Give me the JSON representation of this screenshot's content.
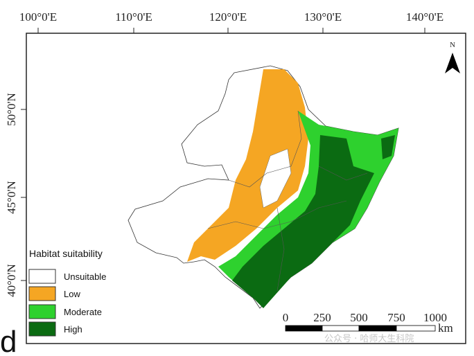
{
  "map": {
    "xticks": [
      "100°0'E",
      "110°0'E",
      "120°0'E",
      "130°0'E",
      "140°0'E"
    ],
    "yticks": [
      "50°0'N",
      "45°0'N",
      "40°0'N"
    ],
    "north": "N",
    "legend": {
      "title": "Habitat suitability",
      "items": [
        "Unsuitable",
        "Low",
        "Moderate",
        "High"
      ]
    },
    "scale_bar": {
      "labels": [
        "0",
        "250",
        "500",
        "750",
        "1000"
      ],
      "unit": "km"
    },
    "panel_label": "d",
    "watermark": "公众号 · 哈师大生科院"
  }
}
